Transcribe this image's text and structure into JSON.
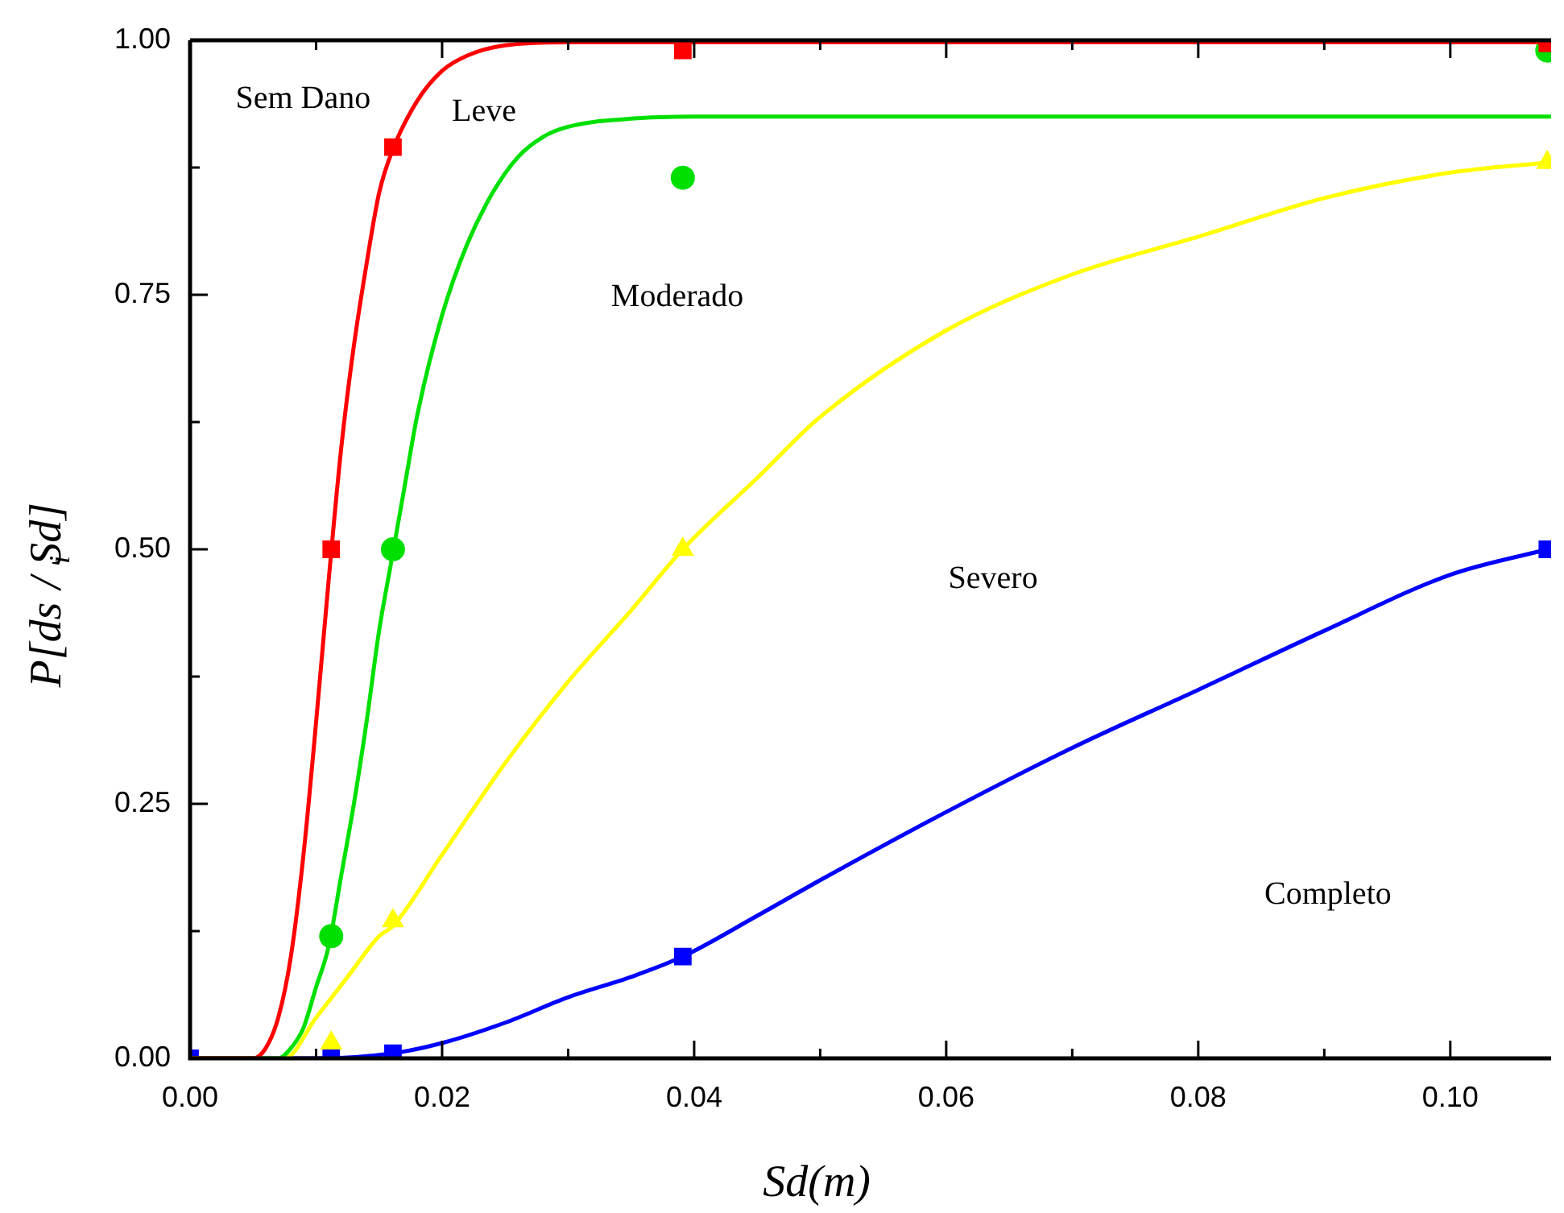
{
  "chart_data": {
    "type": "line",
    "xlabel": "Sd(m)",
    "ylabel": "P[ds$_{i}$ / Sd]",
    "xlim": [
      0,
      0.108
    ],
    "ylim": [
      0,
      1
    ],
    "xticks": [
      {
        "value": 0,
        "label": "0.00"
      },
      {
        "value": 0.01,
        "label": null
      },
      {
        "value": 0.02,
        "label": "0.02"
      },
      {
        "value": 0.03,
        "label": null
      },
      {
        "value": 0.04,
        "label": "0.04"
      },
      {
        "value": 0.05,
        "label": null
      },
      {
        "value": 0.06,
        "label": "0.06"
      },
      {
        "value": 0.07,
        "label": null
      },
      {
        "value": 0.08,
        "label": "0.08"
      },
      {
        "value": 0.09,
        "label": null
      },
      {
        "value": 0.1,
        "label": "0.10"
      }
    ],
    "yticks": [
      {
        "value": 0,
        "label": "0.00"
      },
      {
        "value": 0.125,
        "label": null
      },
      {
        "value": 0.25,
        "label": "0.25"
      },
      {
        "value": 0.375,
        "label": null
      },
      {
        "value": 0.5,
        "label": "0.50"
      },
      {
        "value": 0.625,
        "label": null
      },
      {
        "value": 0.75,
        "label": "0.75"
      },
      {
        "value": 0.875,
        "label": null
      },
      {
        "value": 1,
        "label": "1.00"
      }
    ],
    "grid": false,
    "legend": false,
    "series": [
      {
        "type": "line",
        "color": "#ff0000",
        "marker": "none",
        "x": [
          0,
          0.005,
          0.006,
          0.007,
          0.008,
          0.009,
          0.01,
          0.011,
          0.012,
          0.013,
          0.014,
          0.015,
          0.016,
          0.018,
          0.02,
          0.022,
          0.025,
          0.03,
          0.108
        ],
        "values": [
          0,
          0,
          0.01,
          0.04,
          0.1,
          0.2,
          0.33,
          0.47,
          0.6,
          0.7,
          0.78,
          0.85,
          0.89,
          0.94,
          0.97,
          0.985,
          0.995,
          0.998,
          0.998
        ]
      },
      {
        "type": "line",
        "color": "#00e000",
        "marker": "none",
        "x": [
          0,
          0.007,
          0.008,
          0.009,
          0.01,
          0.011,
          0.012,
          0.013,
          0.014,
          0.015,
          0.016,
          0.017,
          0.018,
          0.02,
          0.022,
          0.024,
          0.026,
          0.028,
          0.03,
          0.035,
          0.04,
          0.108
        ],
        "values": [
          0,
          0,
          0.01,
          0.03,
          0.07,
          0.11,
          0.18,
          0.25,
          0.33,
          0.42,
          0.49,
          0.56,
          0.63,
          0.73,
          0.8,
          0.85,
          0.885,
          0.905,
          0.915,
          0.923,
          0.925,
          0.925
        ]
      },
      {
        "type": "line",
        "color": "#ffff00",
        "marker": "none",
        "x": [
          0,
          0.0075,
          0.01,
          0.0125,
          0.015,
          0.0161,
          0.02,
          0.025,
          0.03,
          0.035,
          0.0391,
          0.045,
          0.05,
          0.06,
          0.07,
          0.08,
          0.09,
          0.1,
          0.1077
        ],
        "values": [
          0,
          0,
          0.04,
          0.08,
          0.12,
          0.13,
          0.2,
          0.29,
          0.37,
          0.44,
          0.5,
          0.57,
          0.63,
          0.715,
          0.77,
          0.807,
          0.845,
          0.87,
          0.88
        ]
      },
      {
        "type": "line",
        "color": "#0000ff",
        "marker": "none",
        "x": [
          0,
          0.01,
          0.0161,
          0.02,
          0.025,
          0.03,
          0.035,
          0.0391,
          0.045,
          0.05,
          0.06,
          0.07,
          0.08,
          0.09,
          0.1,
          0.1077
        ],
        "values": [
          0,
          0,
          0.005,
          0.015,
          0.035,
          0.06,
          0.08,
          0.1,
          0.14,
          0.175,
          0.242,
          0.305,
          0.362,
          0.42,
          0.475,
          0.5
        ]
      },
      {
        "type": "scatter",
        "color": "#ff0000",
        "marker": "square",
        "x": [
          0.0112,
          0.0161,
          0.0391,
          0.1077
        ],
        "values": [
          0.5,
          0.895,
          0.99,
          0.997
        ]
      },
      {
        "type": "scatter",
        "color": "#00e000",
        "marker": "circle",
        "x": [
          0.0112,
          0.0161,
          0.0391,
          0.1077
        ],
        "values": [
          0.12,
          0.5,
          0.865,
          0.99
        ]
      },
      {
        "type": "scatter",
        "color": "#ffff00",
        "marker": "triangle",
        "x": [
          0.0112,
          0.0161,
          0.0391,
          0.1077
        ],
        "values": [
          0.015,
          0.135,
          0.5,
          0.88
        ]
      },
      {
        "type": "scatter",
        "color": "#0000ff",
        "marker": "square",
        "x": [
          0,
          0.0112,
          0.0161,
          0.0391,
          0.1077
        ],
        "values": [
          0,
          0,
          0.005,
          0.1,
          0.5
        ]
      }
    ],
    "annotations": [
      "Sem Dano",
      "Leve",
      "Moderado",
      "Severo",
      "Completo"
    ]
  }
}
